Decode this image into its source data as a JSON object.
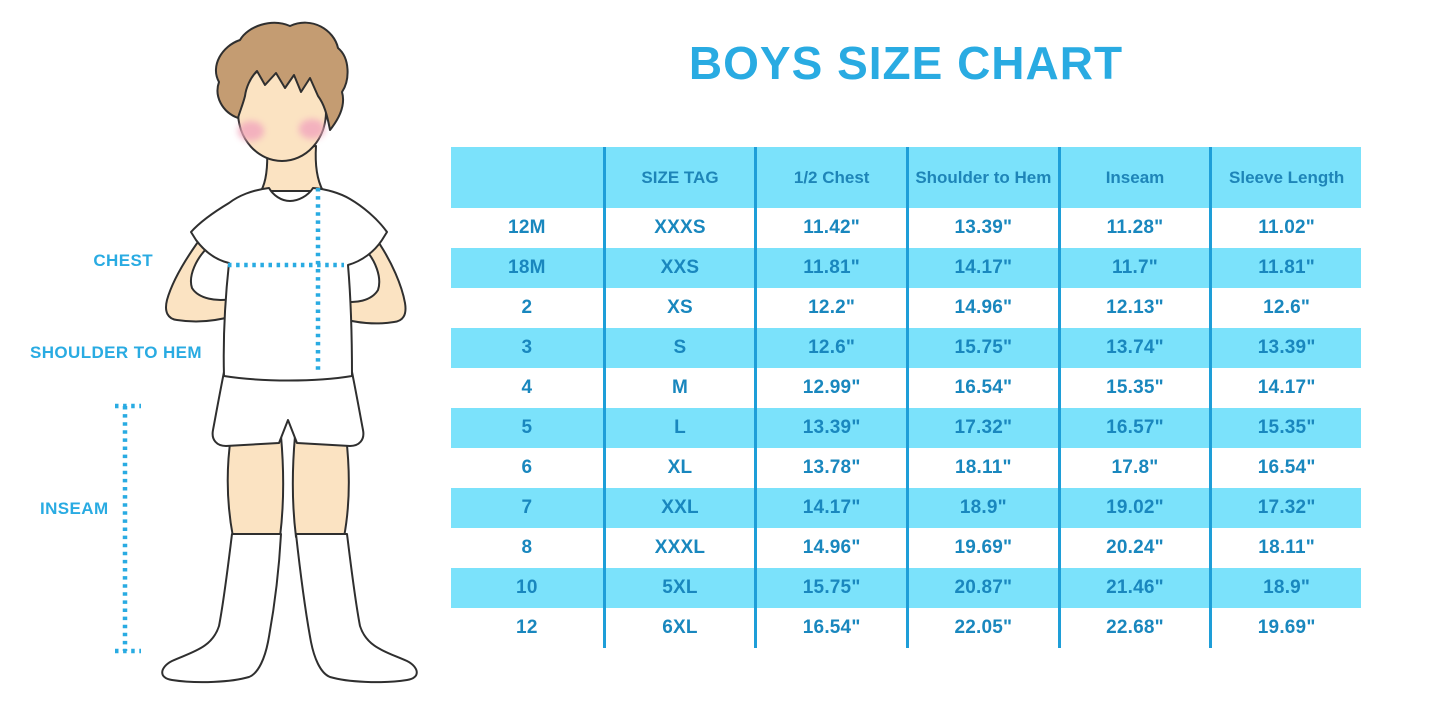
{
  "title": "BOYS SIZE CHART",
  "measurement_labels": {
    "chest": "CHEST",
    "shoulder_to_hem": "SHOULDER TO HEM",
    "inseam": "INSEAM"
  },
  "chart_data": {
    "type": "table",
    "title": "BOYS SIZE CHART",
    "columns": [
      "",
      "SIZE TAG",
      "1/2 Chest",
      "Shoulder to Hem",
      "Inseam",
      "Sleeve Length"
    ],
    "rows": [
      [
        "12M",
        "XXXS",
        "11.42\"",
        "13.39\"",
        "11.28\"",
        "11.02\""
      ],
      [
        "18M",
        "XXS",
        "11.81\"",
        "14.17\"",
        "11.7\"",
        "11.81\""
      ],
      [
        "2",
        "XS",
        "12.2\"",
        "14.96\"",
        "12.13\"",
        "12.6\""
      ],
      [
        "3",
        "S",
        "12.6\"",
        "15.75\"",
        "13.74\"",
        "13.39\""
      ],
      [
        "4",
        "M",
        "12.99\"",
        "16.54\"",
        "15.35\"",
        "14.17\""
      ],
      [
        "5",
        "L",
        "13.39\"",
        "17.32\"",
        "16.57\"",
        "15.35\""
      ],
      [
        "6",
        "XL",
        "13.78\"",
        "18.11\"",
        "17.8\"",
        "16.54\""
      ],
      [
        "7",
        "XXL",
        "14.17\"",
        "18.9\"",
        "19.02\"",
        "17.32\""
      ],
      [
        "8",
        "XXXL",
        "14.96\"",
        "19.69\"",
        "20.24\"",
        "18.11\""
      ],
      [
        "10",
        "5XL",
        "15.75\"",
        "20.87\"",
        "21.46\"",
        "18.9\""
      ],
      [
        "12",
        "6XL",
        "16.54\"",
        "22.05\"",
        "22.68\"",
        "19.69\""
      ]
    ],
    "layout": {
      "stripe_colors": [
        "#FFFFFF",
        "#7BE2FB"
      ],
      "grid": "vertical-dividers-only"
    }
  },
  "colors": {
    "accent": "#29ABE2",
    "table_fill": "#7BE2FB",
    "divider": "#1E9ED8",
    "cell_text": "#1987BE",
    "header_text": "#1E85B8",
    "hair": "#C49C72",
    "skin": "#FBE3C2",
    "blush": "#F2A9BE",
    "outline": "#2F2F2F"
  }
}
